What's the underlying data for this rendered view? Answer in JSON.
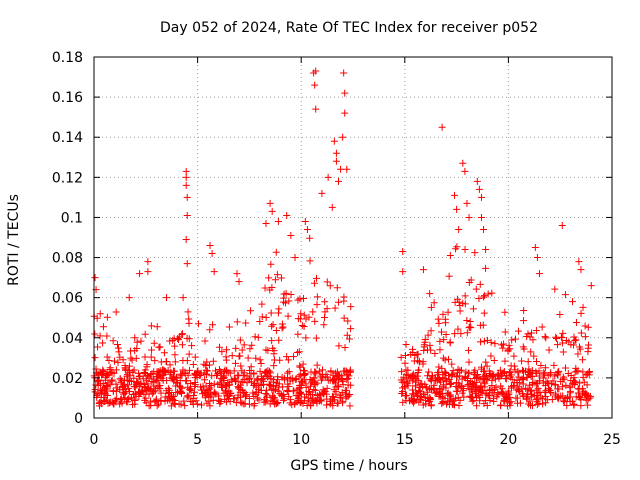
{
  "chart_data": {
    "type": "scatter",
    "title": "Day 052 of 2024, Rate Of TEC Index for receiver p052",
    "xlabel": "GPS time / hours",
    "ylabel": "ROTI / TECUs",
    "xlim": [
      0,
      25
    ],
    "ylim": [
      0,
      0.18
    ],
    "grid": true,
    "marker": "+",
    "x_ticks": [
      {
        "value": 0,
        "label": "0"
      },
      {
        "value": 5,
        "label": "5"
      },
      {
        "value": 10,
        "label": "10"
      },
      {
        "value": 15,
        "label": "15"
      },
      {
        "value": 20,
        "label": "20"
      },
      {
        "value": 25,
        "label": "25"
      }
    ],
    "y_ticks": [
      {
        "value": 0,
        "label": "0"
      },
      {
        "value": 0.02,
        "label": "0.02"
      },
      {
        "value": 0.04,
        "label": "0.04"
      },
      {
        "value": 0.06,
        "label": "0.06"
      },
      {
        "value": 0.08,
        "label": "0.08"
      },
      {
        "value": 0.1,
        "label": "0.1"
      },
      {
        "value": 0.12,
        "label": "0.12"
      },
      {
        "value": 0.14,
        "label": "0.14"
      },
      {
        "value": 0.16,
        "label": "0.16"
      },
      {
        "value": 0.18,
        "label": "0.18"
      }
    ],
    "series": [
      {
        "name": "ROTI",
        "color": "#ff0000",
        "segments": [
          [
            0.0,
            12.4
          ],
          [
            14.8,
            24.0
          ]
        ],
        "spikes": [
          {
            "x": 0.05,
            "y": 0.07
          },
          {
            "x": 0.1,
            "y": 0.064
          },
          {
            "x": 0.3,
            "y": 0.052
          },
          {
            "x": 1.7,
            "y": 0.06
          },
          {
            "x": 2.2,
            "y": 0.072
          },
          {
            "x": 2.6,
            "y": 0.078
          },
          {
            "x": 2.6,
            "y": 0.073
          },
          {
            "x": 3.5,
            "y": 0.06
          },
          {
            "x": 4.3,
            "y": 0.06
          },
          {
            "x": 4.45,
            "y": 0.123
          },
          {
            "x": 4.45,
            "y": 0.12
          },
          {
            "x": 4.45,
            "y": 0.116
          },
          {
            "x": 4.5,
            "y": 0.11
          },
          {
            "x": 4.5,
            "y": 0.101
          },
          {
            "x": 4.45,
            "y": 0.089
          },
          {
            "x": 4.5,
            "y": 0.077
          },
          {
            "x": 5.6,
            "y": 0.086
          },
          {
            "x": 5.7,
            "y": 0.082
          },
          {
            "x": 5.8,
            "y": 0.073
          },
          {
            "x": 6.9,
            "y": 0.072
          },
          {
            "x": 7.0,
            "y": 0.068
          },
          {
            "x": 8.3,
            "y": 0.097
          },
          {
            "x": 8.5,
            "y": 0.107
          },
          {
            "x": 8.6,
            "y": 0.103
          },
          {
            "x": 8.9,
            "y": 0.098
          },
          {
            "x": 9.3,
            "y": 0.101
          },
          {
            "x": 9.5,
            "y": 0.091
          },
          {
            "x": 9.7,
            "y": 0.08
          },
          {
            "x": 10.2,
            "y": 0.098
          },
          {
            "x": 10.3,
            "y": 0.094
          },
          {
            "x": 10.6,
            "y": 0.172
          },
          {
            "x": 10.65,
            "y": 0.166
          },
          {
            "x": 10.7,
            "y": 0.154
          },
          {
            "x": 10.7,
            "y": 0.173
          },
          {
            "x": 11.0,
            "y": 0.112
          },
          {
            "x": 11.3,
            "y": 0.12
          },
          {
            "x": 11.5,
            "y": 0.105
          },
          {
            "x": 11.6,
            "y": 0.138
          },
          {
            "x": 11.7,
            "y": 0.132
          },
          {
            "x": 11.7,
            "y": 0.128
          },
          {
            "x": 11.8,
            "y": 0.118
          },
          {
            "x": 11.9,
            "y": 0.124
          },
          {
            "x": 12.0,
            "y": 0.14
          },
          {
            "x": 12.05,
            "y": 0.172
          },
          {
            "x": 12.1,
            "y": 0.162
          },
          {
            "x": 12.1,
            "y": 0.152
          },
          {
            "x": 12.2,
            "y": 0.124
          },
          {
            "x": 14.9,
            "y": 0.083
          },
          {
            "x": 14.9,
            "y": 0.073
          },
          {
            "x": 15.9,
            "y": 0.074
          },
          {
            "x": 16.2,
            "y": 0.062
          },
          {
            "x": 16.8,
            "y": 0.145
          },
          {
            "x": 17.2,
            "y": 0.081
          },
          {
            "x": 17.4,
            "y": 0.111
          },
          {
            "x": 17.5,
            "y": 0.104
          },
          {
            "x": 17.6,
            "y": 0.094
          },
          {
            "x": 17.8,
            "y": 0.127
          },
          {
            "x": 17.9,
            "y": 0.123
          },
          {
            "x": 18.0,
            "y": 0.107
          },
          {
            "x": 18.1,
            "y": 0.1
          },
          {
            "x": 18.5,
            "y": 0.118
          },
          {
            "x": 18.6,
            "y": 0.114
          },
          {
            "x": 18.7,
            "y": 0.11
          },
          {
            "x": 18.7,
            "y": 0.1
          },
          {
            "x": 18.8,
            "y": 0.094
          },
          {
            "x": 18.9,
            "y": 0.084
          },
          {
            "x": 21.3,
            "y": 0.085
          },
          {
            "x": 21.4,
            "y": 0.08
          },
          {
            "x": 21.5,
            "y": 0.072
          },
          {
            "x": 22.6,
            "y": 0.096
          },
          {
            "x": 23.4,
            "y": 0.078
          },
          {
            "x": 23.5,
            "y": 0.074
          },
          {
            "x": 24.0,
            "y": 0.066
          }
        ]
      }
    ]
  }
}
